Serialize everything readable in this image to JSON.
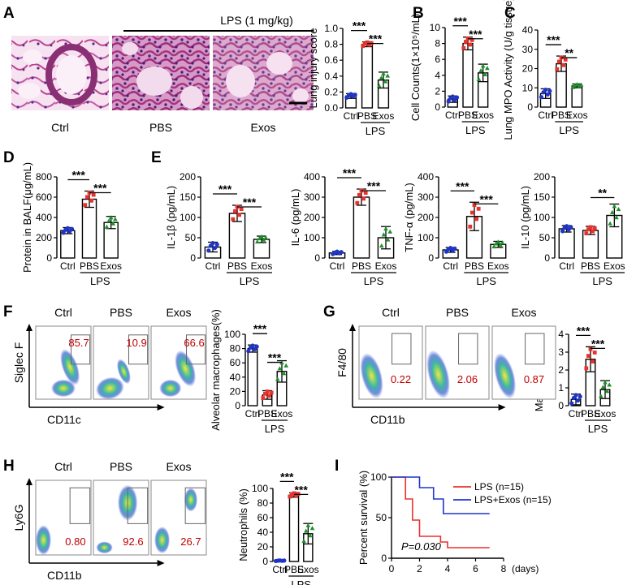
{
  "colors": {
    "ctrl": "#1f35c8",
    "pbs": "#e8322d",
    "exos": "#1f8f2a",
    "he_bg": "#f2d6ec",
    "he_tissue": "#b8438f",
    "he_nuc": "#5a2a8a",
    "facs_hi": "#f2e05a",
    "facs_mid": "#45b7a5",
    "facs_lo": "#3a5fd0",
    "red_text": "#c00000"
  },
  "shared": {
    "lps_label": "LPS",
    "group_labels": [
      "Ctrl",
      "PBS",
      "Exos"
    ]
  },
  "panels": {
    "A": {
      "letter": "A",
      "lps_dose": "LPS (1 mg/kg)",
      "image_labels": [
        "Ctrl",
        "PBS",
        "Exos"
      ]
    },
    "B": {
      "letter": "B"
    },
    "C": {
      "letter": "C"
    },
    "D": {
      "letter": "D"
    },
    "E": {
      "letter": "E"
    },
    "F": {
      "letter": "F",
      "facs_labels": [
        "Ctrl",
        "PBS",
        "Exos"
      ],
      "gate_values": [
        "85.7",
        "10.9",
        "66.6"
      ],
      "x_axis": "CD11c",
      "y_axis": "Siglec F"
    },
    "G": {
      "letter": "G",
      "facs_labels": [
        "Ctrl",
        "PBS",
        "Exos"
      ],
      "gate_values": [
        "0.22",
        "2.06",
        "0.87"
      ],
      "x_axis": "CD11b",
      "y_axis": "F4/80"
    },
    "H": {
      "letter": "H",
      "facs_labels": [
        "Ctrl",
        "PBS",
        "Exos"
      ],
      "gate_values": [
        "0.80",
        "92.6",
        "26.7"
      ],
      "x_axis": "CD11b",
      "y_axis": "Ly6G"
    },
    "I": {
      "letter": "I"
    }
  },
  "chart_data": [
    {
      "id": "A_bar",
      "type": "bar",
      "ylabel": "Lung injury score",
      "categories": [
        "Ctrl",
        "PBS",
        "Exos"
      ],
      "values": [
        0.15,
        0.8,
        0.35
      ],
      "errors": [
        0.03,
        0.03,
        0.1
      ],
      "ylim": [
        0,
        1.0
      ],
      "yticks": [
        0,
        0.2,
        0.4,
        0.6,
        0.8,
        1.0
      ],
      "ytick_labels": [
        "0.0",
        "0.2",
        "0.4",
        "0.6",
        "0.8",
        "1.0"
      ],
      "sig": [
        {
          "from": 0,
          "to": 1,
          "label": "***"
        },
        {
          "from": 1,
          "to": 2,
          "label": "***"
        }
      ]
    },
    {
      "id": "B_bar",
      "type": "bar",
      "ylabel": "Cell Counts(1×10⁵/mL)",
      "categories": [
        "Ctrl",
        "PBS",
        "Exos"
      ],
      "values": [
        1.0,
        8.0,
        4.3
      ],
      "errors": [
        0.4,
        0.8,
        1.1
      ],
      "ylim": [
        0,
        10
      ],
      "yticks": [
        0,
        2,
        4,
        6,
        8,
        10
      ],
      "ytick_labels": [
        "0",
        "2",
        "4",
        "6",
        "8",
        "10"
      ],
      "sig": [
        {
          "from": 0,
          "to": 1,
          "label": "***"
        },
        {
          "from": 1,
          "to": 2,
          "label": "***"
        }
      ]
    },
    {
      "id": "C_bar",
      "type": "bar",
      "ylabel": "Lung MPO Activity (U/g tissue)",
      "categories": [
        "Ctrl",
        "PBS",
        "Exos"
      ],
      "values": [
        7,
        22.5,
        11
      ],
      "errors": [
        2.5,
        4,
        1
      ],
      "ylim": [
        0,
        40
      ],
      "yticks": [
        0,
        10,
        20,
        30,
        40
      ],
      "ytick_labels": [
        "0",
        "10",
        "20",
        "30",
        "40"
      ],
      "sig": [
        {
          "from": 0,
          "to": 1,
          "label": "***"
        },
        {
          "from": 1,
          "to": 2,
          "label": "**"
        }
      ]
    },
    {
      "id": "D_bar",
      "type": "bar",
      "ylabel": "Protein in BALF(μg/mL)",
      "categories": [
        "Ctrl",
        "PBS",
        "Exos"
      ],
      "values": [
        270,
        580,
        350
      ],
      "errors": [
        30,
        80,
        60
      ],
      "ylim": [
        0,
        800
      ],
      "yticks": [
        0,
        200,
        400,
        600,
        800
      ],
      "ytick_labels": [
        "0",
        "200",
        "400",
        "600",
        "800"
      ],
      "sig": [
        {
          "from": 0,
          "to": 1,
          "label": "***"
        },
        {
          "from": 1,
          "to": 2,
          "label": "***"
        }
      ]
    },
    {
      "id": "E1_bar",
      "type": "bar",
      "ylabel": "IL-1β (pg/mL)",
      "categories": [
        "Ctrl",
        "PBS",
        "Exos"
      ],
      "values": [
        27,
        110,
        46
      ],
      "errors": [
        12,
        20,
        8
      ],
      "ylim": [
        0,
        200
      ],
      "yticks": [
        0,
        50,
        100,
        150,
        200
      ],
      "ytick_labels": [
        "0",
        "50",
        "100",
        "150",
        "200"
      ],
      "sig": [
        {
          "from": 0,
          "to": 1,
          "label": "***"
        },
        {
          "from": 1,
          "to": 2,
          "label": "***"
        }
      ]
    },
    {
      "id": "E2_bar",
      "type": "bar",
      "ylabel": "IL-6 (pg/mL)",
      "categories": [
        "Ctrl",
        "PBS",
        "Exos"
      ],
      "values": [
        25,
        300,
        100
      ],
      "errors": [
        8,
        40,
        55
      ],
      "ylim": [
        0,
        400
      ],
      "yticks": [
        0,
        100,
        200,
        300,
        400
      ],
      "ytick_labels": [
        "0",
        "100",
        "200",
        "300",
        "400"
      ],
      "sig": [
        {
          "from": 0,
          "to": 1,
          "label": "***"
        },
        {
          "from": 1,
          "to": 2,
          "label": "***"
        }
      ]
    },
    {
      "id": "E3_bar",
      "type": "bar",
      "ylabel": "TNF-α (pg/mL)",
      "categories": [
        "Ctrl",
        "PBS",
        "Exos"
      ],
      "values": [
        40,
        205,
        67
      ],
      "errors": [
        12,
        70,
        15
      ],
      "ylim": [
        0,
        400
      ],
      "yticks": [
        0,
        100,
        200,
        300,
        400
      ],
      "ytick_labels": [
        "0",
        "100",
        "200",
        "300",
        "400"
      ],
      "sig": [
        {
          "from": 0,
          "to": 1,
          "label": "***"
        },
        {
          "from": 1,
          "to": 2,
          "label": "***"
        }
      ]
    },
    {
      "id": "E4_bar",
      "type": "bar",
      "ylabel": "IL-10 (pg/mL)",
      "categories": [
        "Ctrl",
        "PBS",
        "Exos"
      ],
      "values": [
        72,
        68,
        105
      ],
      "errors": [
        8,
        10,
        28
      ],
      "ylim": [
        0,
        200
      ],
      "yticks": [
        0,
        50,
        100,
        150,
        200
      ],
      "ytick_labels": [
        "0",
        "50",
        "100",
        "150",
        "200"
      ],
      "sig": [
        {
          "from": 1,
          "to": 2,
          "label": "**"
        }
      ]
    },
    {
      "id": "F_bar",
      "type": "bar",
      "ylabel": "Alveolar macrophages(%)",
      "categories": [
        "Ctrl",
        "PBS",
        "Exos"
      ],
      "values": [
        80,
        15,
        48
      ],
      "errors": [
        5,
        6,
        15
      ],
      "ylim": [
        0,
        100
      ],
      "yticks": [
        0,
        20,
        40,
        60,
        80,
        100
      ],
      "ytick_labels": [
        "0",
        "20",
        "40",
        "60",
        "80",
        "100"
      ],
      "sig": [
        {
          "from": 0,
          "to": 1,
          "label": "***"
        },
        {
          "from": 1,
          "to": 2,
          "label": "***"
        }
      ]
    },
    {
      "id": "G_bar",
      "type": "bar",
      "ylabel": "Macrophages (%)",
      "categories": [
        "Ctrl",
        "PBS",
        "Exos"
      ],
      "values": [
        0.35,
        2.6,
        0.9
      ],
      "errors": [
        0.3,
        0.7,
        0.5
      ],
      "ylim": [
        0,
        4
      ],
      "yticks": [
        0,
        1,
        2,
        3,
        4
      ],
      "ytick_labels": [
        "0",
        "1",
        "2",
        "3",
        "4"
      ],
      "sig": [
        {
          "from": 0,
          "to": 1,
          "label": "***"
        },
        {
          "from": 1,
          "to": 2,
          "label": "***"
        }
      ]
    },
    {
      "id": "H_bar",
      "type": "bar",
      "ylabel": "Neutrophils (%)",
      "categories": [
        "Ctrl",
        "PBS",
        "Exos"
      ],
      "values": [
        1,
        91,
        38
      ],
      "errors": [
        0.5,
        3,
        14
      ],
      "ylim": [
        0,
        100
      ],
      "yticks": [
        0,
        20,
        40,
        60,
        80,
        100
      ],
      "ytick_labels": [
        "0",
        "20",
        "40",
        "60",
        "80",
        "100"
      ],
      "sig": [
        {
          "from": 0,
          "to": 1,
          "label": "***"
        },
        {
          "from": 1,
          "to": 2,
          "label": "***"
        }
      ]
    },
    {
      "id": "I_survival",
      "type": "line",
      "xlabel": "(days)",
      "ylabel": "Percent survival (%)",
      "xlim": [
        0,
        8
      ],
      "ylim": [
        0,
        100
      ],
      "xticks": [
        0,
        2,
        4,
        6,
        8
      ],
      "yticks": [
        0,
        50,
        100
      ],
      "annotation": "P=0.030",
      "series": [
        {
          "name": "LPS (n=15)",
          "color": "#e8322d",
          "steps": [
            [
              0,
              100
            ],
            [
              1,
              100
            ],
            [
              1,
              73
            ],
            [
              1.5,
              73
            ],
            [
              1.5,
              47
            ],
            [
              2,
              47
            ],
            [
              2,
              27
            ],
            [
              3.5,
              27
            ],
            [
              3.5,
              20
            ],
            [
              4,
              20
            ],
            [
              4,
              13
            ],
            [
              7,
              13
            ]
          ]
        },
        {
          "name": "LPS+Exos (n=15)",
          "color": "#1f35c8",
          "steps": [
            [
              0,
              100
            ],
            [
              2,
              100
            ],
            [
              2,
              87
            ],
            [
              3,
              87
            ],
            [
              3,
              73
            ],
            [
              3.7,
              73
            ],
            [
              3.7,
              55
            ],
            [
              7,
              55
            ]
          ]
        }
      ]
    }
  ]
}
